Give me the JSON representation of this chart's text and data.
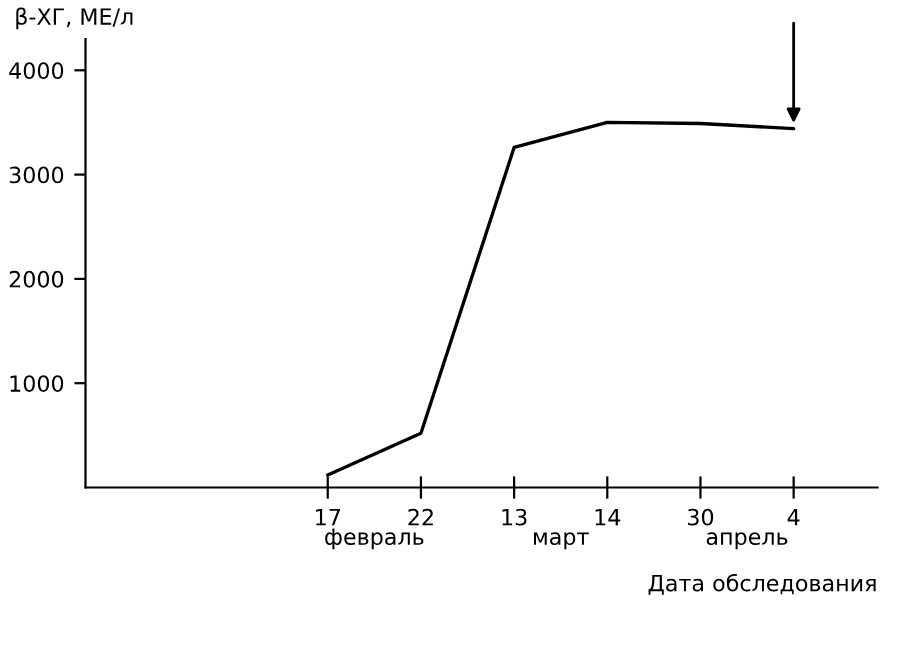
{
  "chart_data": {
    "type": "line",
    "ylabel": "β-ХГ, МЕ/л",
    "xlabel": "Дата обследования",
    "categories": [
      "17",
      "22",
      "13",
      "14",
      "30",
      "4"
    ],
    "series": [
      {
        "color": "#000000",
        "values": [
          120,
          520,
          3260,
          3500,
          3490,
          3440
        ]
      }
    ],
    "ylim": [
      0,
      4300
    ],
    "yticks": [
      1000,
      2000,
      3000,
      4000
    ],
    "annotations": [
      "февраль",
      "март",
      "апрель"
    ],
    "grid": false,
    "legend": false,
    "marker": "none",
    "line_style": "solid"
  }
}
